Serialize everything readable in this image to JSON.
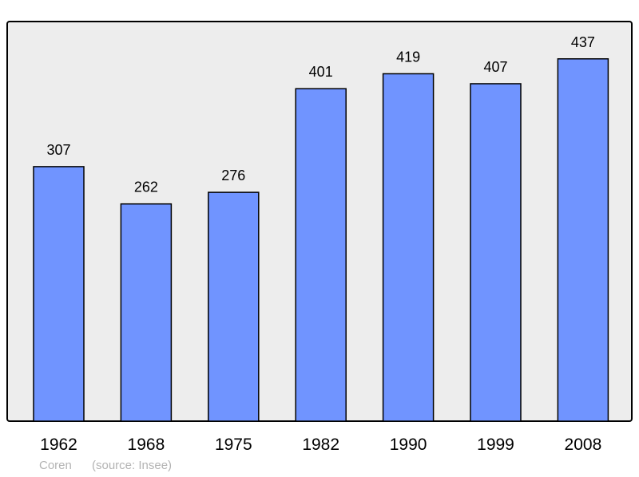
{
  "chart_data": {
    "type": "bar",
    "categories": [
      "1962",
      "1968",
      "1975",
      "1982",
      "1990",
      "1999",
      "2008"
    ],
    "values": [
      307,
      262,
      276,
      401,
      419,
      407,
      437
    ],
    "title": "",
    "xlabel": "",
    "ylabel": "",
    "ylim": [
      0,
      482
    ],
    "grid": false,
    "data_labels": true,
    "colors": {
      "bar": "#7094ff",
      "plot_background": "#ededed",
      "border": "#000000",
      "footer_text": "#b3b3b3"
    }
  },
  "footer": {
    "place": "Coren",
    "source": "(source: Insee)"
  }
}
